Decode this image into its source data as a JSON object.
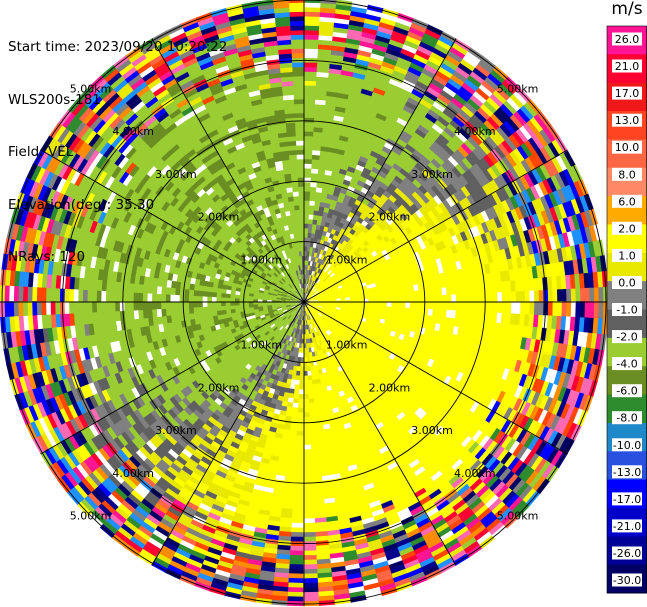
{
  "header": {
    "start_time": "Start time: 2023/09/20 10:20:22",
    "instrument": "WLS200s-181",
    "field": "Field: VEL",
    "elevation": "Elevation(deg): 35.30",
    "nrays": "NRays: 120"
  },
  "chart_data": {
    "type": "heatmap",
    "projection": "polar",
    "field": "VEL",
    "unit": "m/s",
    "nrays": 120,
    "elevation_deg": 35.3,
    "range_ring_labels": [
      "1.00km",
      "2.00km",
      "3.00km",
      "4.00km",
      "5.00km"
    ],
    "spokes_deg": [
      0,
      30,
      60,
      90,
      120,
      150,
      180,
      210,
      240,
      270,
      300,
      330
    ],
    "colorbar": {
      "ticks": [
        "26.0",
        "21.0",
        "17.0",
        "13.0",
        "10.0",
        "8.0",
        "6.0",
        "2.0",
        "1.0",
        "0.0",
        "-1.0",
        "-2.0",
        "-4.0",
        "-6.0",
        "-8.0",
        "-10.0",
        "-13.0",
        "-17.0",
        "-21.0",
        "-26.0",
        "-30.0"
      ],
      "colors": [
        "#ff1493",
        "#ff0033",
        "#f01919",
        "#ff4422",
        "#ff6644",
        "#ff8866",
        "#ffaa00",
        "#ffff00",
        "#e9e900",
        "#808080",
        "#606060",
        "#9acd32",
        "#6b8e23",
        "#2e8b2e",
        "#1e88c8",
        "#2a50e0",
        "#0000ff",
        "#0000c8",
        "#000096",
        "#000064"
      ]
    },
    "inner_pattern": {
      "positive_sector": "east/south-east (yellow, ~1 to 2 m/s)",
      "negative_sector": "west/north-west (yellow-green, ~-2 m/s)",
      "near_zero": "grey bands"
    }
  }
}
